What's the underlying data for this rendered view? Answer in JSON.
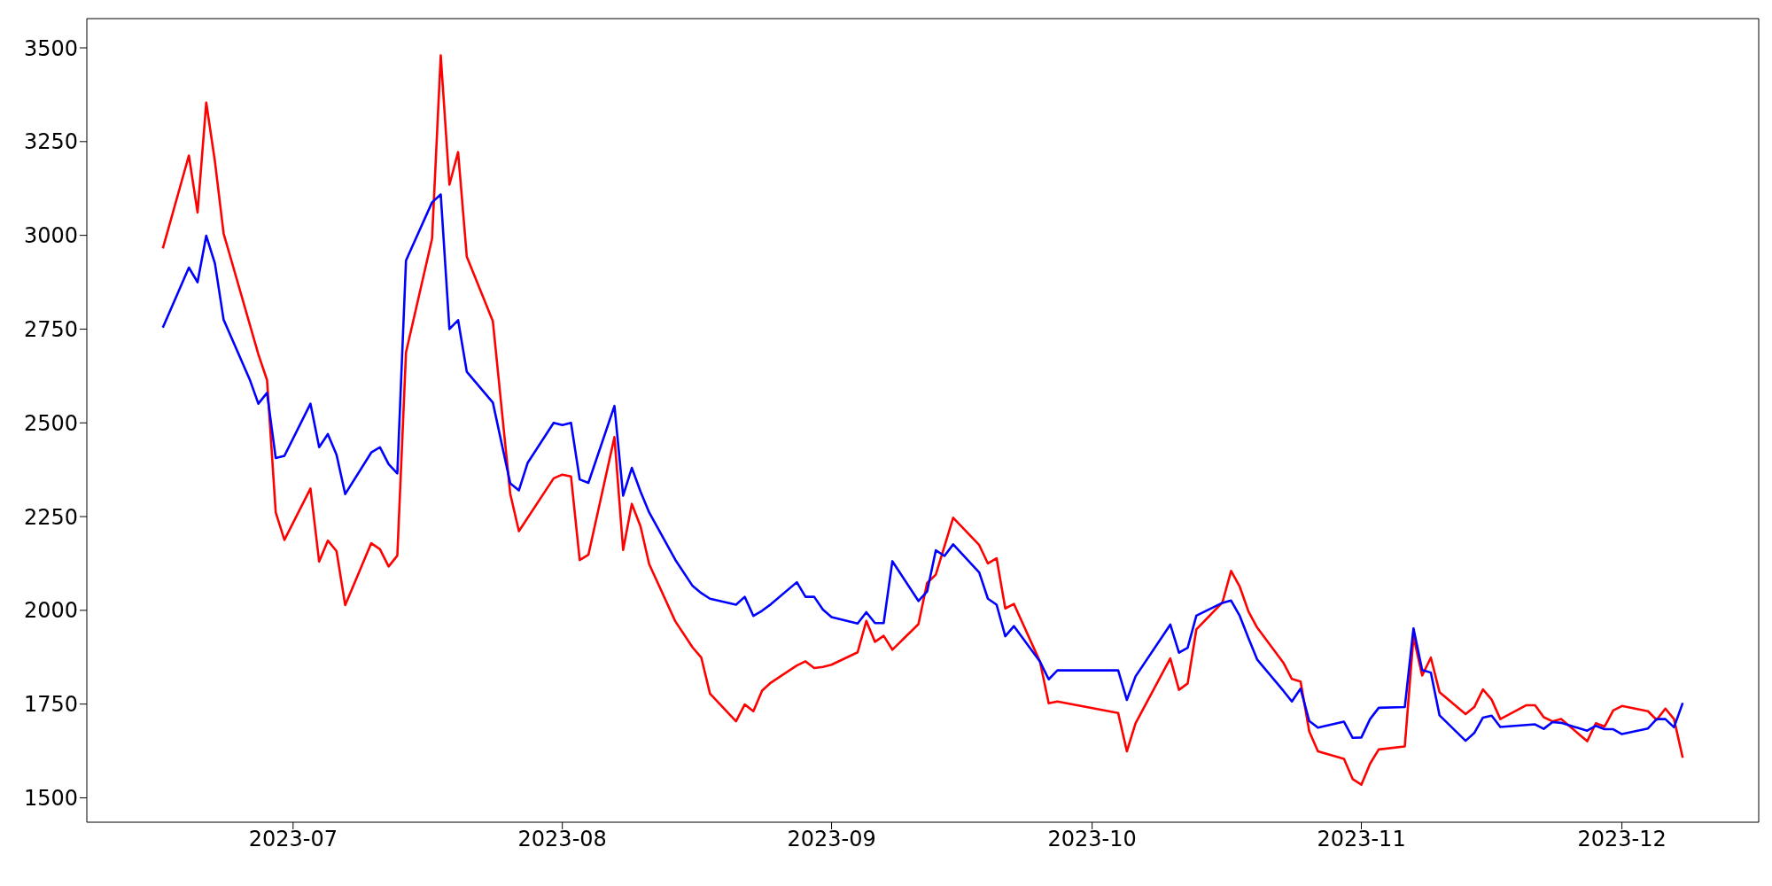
{
  "chart_data": {
    "type": "line",
    "xlim": [
      "2023-06-07T06:00",
      "2023-12-16T18:00"
    ],
    "ylim": [
      1435,
      3578
    ],
    "xticks": [
      {
        "value": "2023-07-01",
        "label": "2023-07"
      },
      {
        "value": "2023-08-01",
        "label": "2023-08"
      },
      {
        "value": "2023-09-01",
        "label": "2023-09"
      },
      {
        "value": "2023-10-01",
        "label": "2023-10"
      },
      {
        "value": "2023-11-01",
        "label": "2023-11"
      },
      {
        "value": "2023-12-01",
        "label": "2023-12"
      }
    ],
    "yticks": [
      1500,
      1750,
      2000,
      2250,
      2500,
      2750,
      3000,
      3250,
      3500
    ],
    "grid": false,
    "marker": "none",
    "line_style": "solid",
    "series": [
      {
        "color": "#ff0000",
        "x": [
          "2023-06-16",
          "2023-06-19",
          "2023-06-20",
          "2023-06-21",
          "2023-06-22",
          "2023-06-23",
          "2023-06-27",
          "2023-06-28",
          "2023-06-29",
          "2023-06-30",
          "2023-07-03",
          "2023-07-04",
          "2023-07-05",
          "2023-07-06",
          "2023-07-07",
          "2023-07-10",
          "2023-07-11",
          "2023-07-12",
          "2023-07-13",
          "2023-07-14",
          "2023-07-17",
          "2023-07-18",
          "2023-07-19",
          "2023-07-20",
          "2023-07-21",
          "2023-07-24",
          "2023-07-26",
          "2023-07-27",
          "2023-07-31",
          "2023-08-01",
          "2023-08-02",
          "2023-08-03",
          "2023-08-04",
          "2023-08-07",
          "2023-08-08",
          "2023-08-09",
          "2023-08-10",
          "2023-08-11",
          "2023-08-14",
          "2023-08-16",
          "2023-08-17",
          "2023-08-18",
          "2023-08-21",
          "2023-08-22",
          "2023-08-23",
          "2023-08-24",
          "2023-08-25",
          "2023-08-28",
          "2023-08-29",
          "2023-08-30",
          "2023-08-31",
          "2023-09-01",
          "2023-09-04",
          "2023-09-05",
          "2023-09-06",
          "2023-09-07",
          "2023-09-08",
          "2023-09-11",
          "2023-09-12",
          "2023-09-13",
          "2023-09-15",
          "2023-09-18",
          "2023-09-19",
          "2023-09-20",
          "2023-09-21",
          "2023-09-22",
          "2023-09-25",
          "2023-09-26",
          "2023-09-27",
          "2023-10-04",
          "2023-10-05",
          "2023-10-06",
          "2023-10-10",
          "2023-10-11",
          "2023-10-12",
          "2023-10-13",
          "2023-10-16",
          "2023-10-17",
          "2023-10-18",
          "2023-10-19",
          "2023-10-20",
          "2023-10-23",
          "2023-10-24",
          "2023-10-25",
          "2023-10-26",
          "2023-10-27",
          "2023-10-30",
          "2023-10-31",
          "2023-11-01",
          "2023-11-02",
          "2023-11-03",
          "2023-11-06",
          "2023-11-07",
          "2023-11-08",
          "2023-11-09",
          "2023-11-10",
          "2023-11-13",
          "2023-11-14",
          "2023-11-15",
          "2023-11-16",
          "2023-11-17",
          "2023-11-20",
          "2023-11-21",
          "2023-11-22",
          "2023-11-23",
          "2023-11-24",
          "2023-11-27",
          "2023-11-28",
          "2023-11-29",
          "2023-11-30",
          "2023-12-01",
          "2023-12-04",
          "2023-12-05",
          "2023-12-06",
          "2023-12-07",
          "2023-12-08"
        ],
        "values": [
          2965,
          3213,
          3061,
          3354,
          3197,
          3005,
          2683,
          2614,
          2261,
          2188,
          2325,
          2130,
          2186,
          2158,
          2014,
          2179,
          2163,
          2117,
          2146,
          2688,
          2991,
          3480,
          3135,
          3222,
          2943,
          2771,
          2311,
          2211,
          2352,
          2362,
          2357,
          2134,
          2148,
          2462,
          2161,
          2284,
          2224,
          2123,
          1971,
          1901,
          1874,
          1778,
          1704,
          1749,
          1731,
          1786,
          1807,
          1853,
          1864,
          1846,
          1849,
          1855,
          1888,
          1972,
          1916,
          1932,
          1895,
          1963,
          2073,
          2095,
          2247,
          2174,
          2125,
          2139,
          2005,
          2017,
          1863,
          1752,
          1757,
          1726,
          1624,
          1699,
          1872,
          1788,
          1805,
          1949,
          2021,
          2105,
          2063,
          1997,
          1954,
          1861,
          1817,
          1810,
          1677,
          1624,
          1604,
          1550,
          1535,
          1591,
          1629,
          1637,
          1930,
          1826,
          1874,
          1782,
          1723,
          1742,
          1789,
          1762,
          1710,
          1747,
          1747,
          1715,
          1704,
          1710,
          1651,
          1699,
          1690,
          1733,
          1745,
          1731,
          1708,
          1738,
          1710,
          1607
        ]
      },
      {
        "color": "#0000ff",
        "x": [
          "2023-06-16",
          "2023-06-19",
          "2023-06-20",
          "2023-06-21",
          "2023-06-22",
          "2023-06-23",
          "2023-06-26",
          "2023-06-27",
          "2023-06-28",
          "2023-06-29",
          "2023-06-30",
          "2023-07-03",
          "2023-07-04",
          "2023-07-05",
          "2023-07-06",
          "2023-07-07",
          "2023-07-10",
          "2023-07-11",
          "2023-07-12",
          "2023-07-13",
          "2023-07-14",
          "2023-07-17",
          "2023-07-18",
          "2023-07-19",
          "2023-07-20",
          "2023-07-21",
          "2023-07-24",
          "2023-07-26",
          "2023-07-27",
          "2023-07-28",
          "2023-07-31",
          "2023-08-01",
          "2023-08-02",
          "2023-08-03",
          "2023-08-04",
          "2023-08-07",
          "2023-08-08",
          "2023-08-09",
          "2023-08-10",
          "2023-08-11",
          "2023-08-14",
          "2023-08-16",
          "2023-08-17",
          "2023-08-18",
          "2023-08-21",
          "2023-08-22",
          "2023-08-23",
          "2023-08-24",
          "2023-08-25",
          "2023-08-28",
          "2023-08-29",
          "2023-08-30",
          "2023-08-31",
          "2023-09-01",
          "2023-09-04",
          "2023-09-05",
          "2023-09-06",
          "2023-09-07",
          "2023-09-08",
          "2023-09-11",
          "2023-09-12",
          "2023-09-13",
          "2023-09-14",
          "2023-09-15",
          "2023-09-18",
          "2023-09-19",
          "2023-09-20",
          "2023-09-21",
          "2023-09-22",
          "2023-09-25",
          "2023-09-26",
          "2023-09-27",
          "2023-10-04",
          "2023-10-05",
          "2023-10-06",
          "2023-10-10",
          "2023-10-11",
          "2023-10-12",
          "2023-10-13",
          "2023-10-16",
          "2023-10-17",
          "2023-10-18",
          "2023-10-19",
          "2023-10-20",
          "2023-10-23",
          "2023-10-24",
          "2023-10-25",
          "2023-10-26",
          "2023-10-27",
          "2023-10-30",
          "2023-10-31",
          "2023-11-01",
          "2023-11-02",
          "2023-11-03",
          "2023-11-06",
          "2023-11-07",
          "2023-11-08",
          "2023-11-09",
          "2023-11-10",
          "2023-11-13",
          "2023-11-14",
          "2023-11-15",
          "2023-11-16",
          "2023-11-17",
          "2023-11-21",
          "2023-11-22",
          "2023-11-23",
          "2023-11-24",
          "2023-11-27",
          "2023-11-28",
          "2023-11-29",
          "2023-11-30",
          "2023-12-01",
          "2023-12-04",
          "2023-12-05",
          "2023-12-06",
          "2023-12-07",
          "2023-12-08"
        ],
        "values": [
          2754,
          2914,
          2875,
          2999,
          2925,
          2775,
          2616,
          2551,
          2580,
          2406,
          2412,
          2551,
          2435,
          2470,
          2415,
          2310,
          2421,
          2435,
          2390,
          2365,
          2933,
          3088,
          3109,
          2750,
          2774,
          2636,
          2554,
          2339,
          2320,
          2393,
          2500,
          2494,
          2500,
          2349,
          2340,
          2545,
          2306,
          2380,
          2317,
          2261,
          2135,
          2065,
          2046,
          2031,
          2015,
          2036,
          1985,
          1999,
          2016,
          2075,
          2036,
          2036,
          2002,
          1982,
          1965,
          1995,
          1966,
          1966,
          2131,
          2025,
          2050,
          2160,
          2145,
          2176,
          2101,
          2031,
          2015,
          1931,
          1958,
          1863,
          1816,
          1840,
          1840,
          1761,
          1824,
          1962,
          1887,
          1900,
          1986,
          2020,
          2026,
          1985,
          1926,
          1869,
          1786,
          1757,
          1791,
          1705,
          1687,
          1703,
          1660,
          1661,
          1710,
          1740,
          1742,
          1952,
          1841,
          1834,
          1720,
          1652,
          1673,
          1714,
          1719,
          1689,
          1696,
          1684,
          1702,
          1700,
          1679,
          1692,
          1683,
          1683,
          1670,
          1685,
          1710,
          1710,
          1688,
          1753
        ]
      }
    ]
  }
}
